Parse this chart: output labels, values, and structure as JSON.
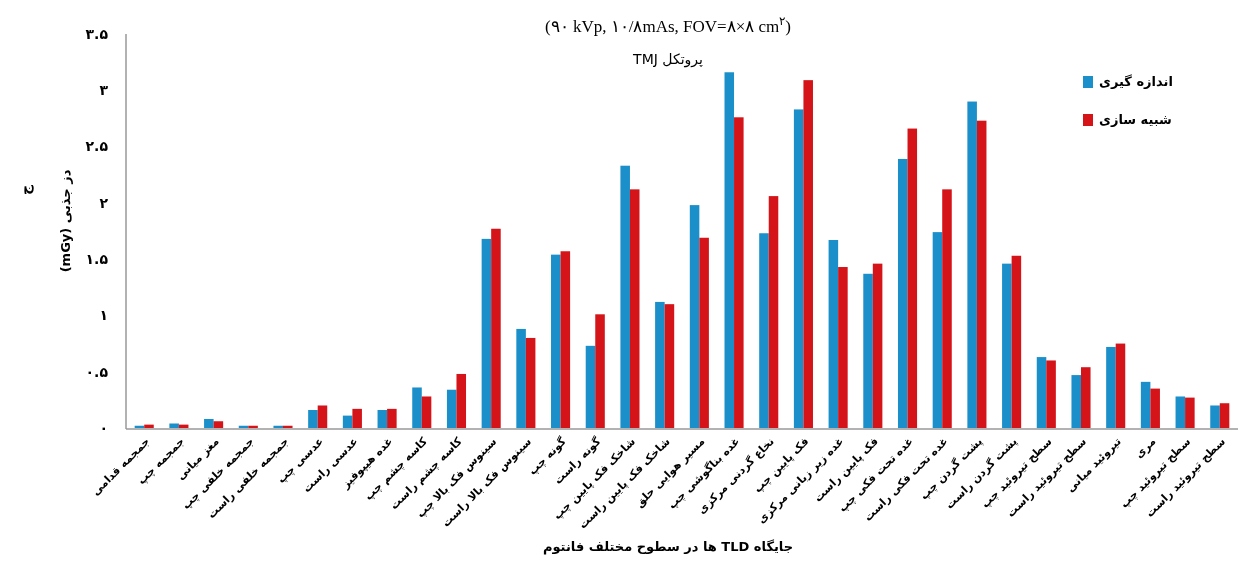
{
  "chart_data": {
    "type": "bar",
    "title": "(۹۰ kVp, ۱۰/۸mAs, FOV=۸×۸ cm$^{۲}$)",
    "subtitle": "پروتکل TMJ",
    "xlabel": "جایگاه TLD ها در سطوح مختلف فانتوم",
    "ylabel": "دز جذبی (mGy)",
    "annotations": [
      "ج"
    ],
    "categories": [
      "جمجمه قدامی",
      "جمجمه چپ",
      "مغز میانی",
      "جمجمه خلفی چپ",
      "جمجمه خلفی راست",
      "عدسی چپ",
      "عدسی راست",
      "غده هیپوفیز",
      "کاسه چشم چپ",
      "کاسه چشم راست",
      "سینوس فک بالا چپ",
      "سینوس فک بالا راست",
      "گونه چپ",
      "گونه راست",
      "شاخک فک پایین چپ",
      "شاخک فک پایین راست",
      "مسیر هوایی حلق",
      "غده بناگوشی چپ",
      "نخاع گردنی مرکزی",
      "فک پایین چپ",
      "غده زیر زبانی مرکزی",
      "فک پایین راست",
      "غده تحت فکی چپ",
      "غده تحت فکی راست",
      "پشت گردن چپ",
      "پشت گردن راست",
      "سطح تیروئید چپ",
      "سطح تیروئید راست",
      "تیروئید میانی",
      "مری",
      "سطح تیروئید چپ",
      "سطح تیروئید راست"
    ],
    "series": [
      {
        "name": "اندازه گیری",
        "color": "#1b8fc9",
        "values": [
          0.02,
          0.04,
          0.08,
          0.02,
          0.02,
          0.16,
          0.11,
          0.16,
          0.36,
          0.34,
          1.68,
          0.88,
          1.54,
          0.73,
          2.33,
          1.12,
          1.98,
          3.16,
          1.73,
          2.83,
          1.67,
          1.37,
          2.39,
          1.74,
          2.9,
          1.46,
          0.63,
          0.47,
          0.72,
          0.41,
          0.28,
          0.2
        ]
      },
      {
        "name": "شبیه سازی",
        "color": "#d41418",
        "values": [
          0.03,
          0.03,
          0.06,
          0.02,
          0.02,
          0.2,
          0.17,
          0.17,
          0.28,
          0.48,
          1.77,
          0.8,
          1.57,
          1.01,
          2.12,
          1.1,
          1.69,
          2.76,
          2.06,
          3.09,
          1.43,
          1.46,
          2.66,
          2.12,
          2.73,
          1.53,
          0.6,
          0.54,
          0.75,
          0.35,
          0.27,
          0.22
        ]
      }
    ],
    "ylim": [
      0,
      3.5
    ],
    "yticks": [
      {
        "value": 0,
        "label": "۰"
      },
      {
        "value": 0.5,
        "label": "۰.۵"
      },
      {
        "value": 1,
        "label": "۱"
      },
      {
        "value": 1.5,
        "label": "۱.۵"
      },
      {
        "value": 2,
        "label": "۲"
      },
      {
        "value": 2.5,
        "label": "۲.۵"
      },
      {
        "value": 3,
        "label": "۳"
      },
      {
        "value": 3.5,
        "label": "۳.۵"
      }
    ],
    "legend": "top right",
    "grid": false
  }
}
